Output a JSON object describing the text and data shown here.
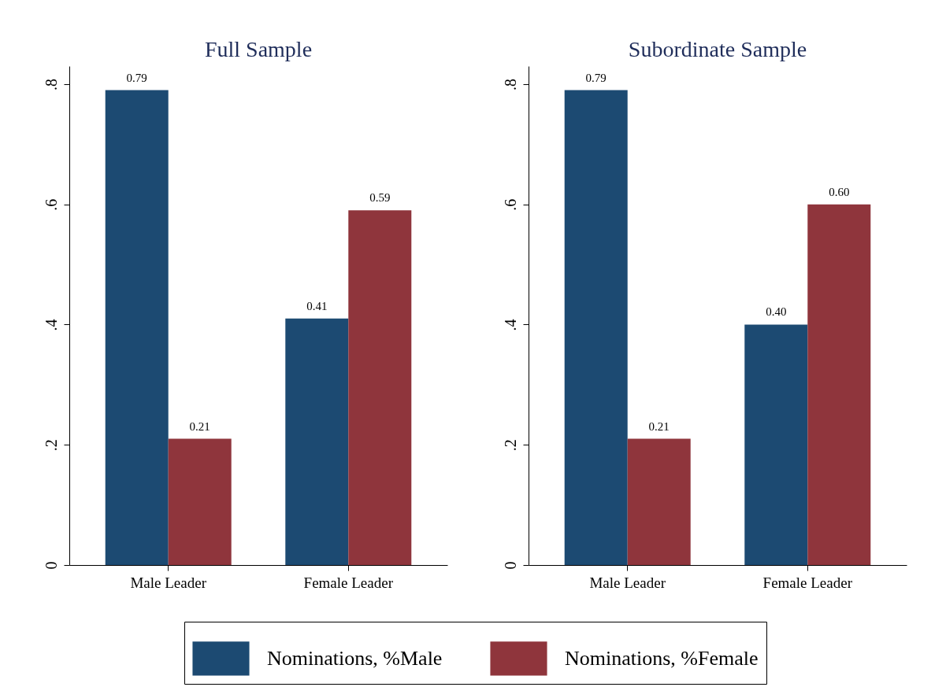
{
  "chart_data": [
    {
      "type": "bar",
      "title": "Full Sample",
      "categories": [
        "Male Leader",
        "Female Leader"
      ],
      "series": [
        {
          "name": "Nominations, %Male",
          "color": "#1c4a72",
          "values": [
            0.79,
            0.41
          ],
          "value_labels": [
            "0.79",
            "0.41"
          ]
        },
        {
          "name": "Nominations, %Female",
          "color": "#8f353c",
          "values": [
            0.21,
            0.59
          ],
          "value_labels": [
            "0.21",
            "0.59"
          ]
        }
      ],
      "ylim": [
        0,
        0.83
      ],
      "yticks": [
        0,
        {
          "value": 0.2,
          "label": ".2"
        },
        {
          "value": 0.4,
          "label": ".4"
        },
        {
          "value": 0.6,
          "label": ".6"
        },
        {
          "value": 0.8,
          "label": ".8"
        }
      ],
      "legend": "bottom"
    },
    {
      "type": "bar",
      "title": "Subordinate Sample",
      "categories": [
        "Male Leader",
        "Female Leader"
      ],
      "series": [
        {
          "name": "Nominations, %Male",
          "color": "#1c4a72",
          "values": [
            0.79,
            0.4
          ],
          "value_labels": [
            "0.79",
            "0.40"
          ]
        },
        {
          "name": "Nominations, %Female",
          "color": "#8f353c",
          "values": [
            0.21,
            0.6
          ],
          "value_labels": [
            "0.21",
            "0.60"
          ]
        }
      ],
      "ylim": [
        0,
        0.83
      ],
      "yticks": [
        0,
        {
          "value": 0.2,
          "label": ".2"
        },
        {
          "value": 0.4,
          "label": ".4"
        },
        {
          "value": 0.6,
          "label": ".6"
        },
        {
          "value": 0.8,
          "label": ".8"
        }
      ],
      "legend": "bottom"
    }
  ]
}
